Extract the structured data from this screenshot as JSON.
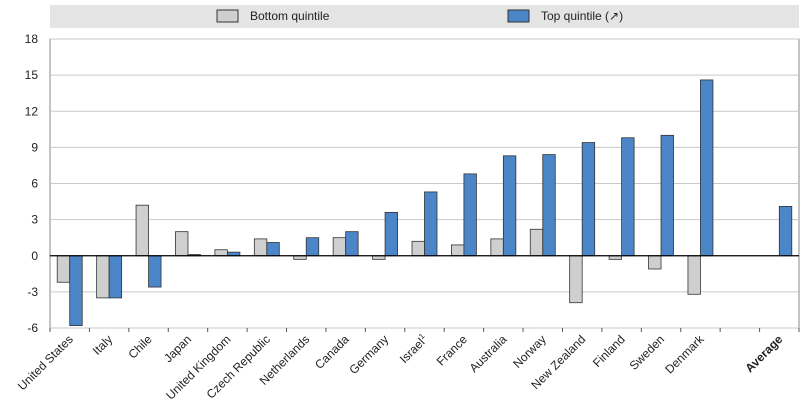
{
  "chart_data": {
    "type": "bar",
    "title": "",
    "xlabel": "",
    "ylabel": "",
    "ylim": [
      -6,
      18
    ],
    "yticks": [
      -6,
      -3,
      0,
      3,
      6,
      9,
      12,
      15,
      18
    ],
    "grid": true,
    "legend_position": "top",
    "categories": [
      "United States",
      "Italy",
      "Chile",
      "Japan",
      "United Kingdom",
      "Czech Republic",
      "Netherlands",
      "Canada",
      "Germany",
      "Israel",
      "France",
      "Australia",
      "Norway",
      "New Zealand",
      "Finland",
      "Sweden",
      "Denmark",
      "",
      "Average"
    ],
    "israel_footnote": "1",
    "bold_categories": [
      "Average"
    ],
    "series": [
      {
        "name": "Bottom quintile",
        "color": "#cfcfcf",
        "values": [
          -2.2,
          -3.5,
          4.2,
          2.0,
          0.5,
          1.4,
          -0.3,
          1.5,
          -0.3,
          1.2,
          0.9,
          1.4,
          2.2,
          -3.9,
          -0.3,
          -1.1,
          -3.2,
          null,
          null
        ]
      },
      {
        "name": "Top quintile (↗)",
        "color": "#4a86c8",
        "values": [
          -5.8,
          -3.5,
          -2.6,
          0.1,
          0.3,
          1.1,
          1.5,
          2.0,
          3.6,
          5.3,
          6.8,
          8.3,
          8.4,
          9.4,
          9.8,
          10.0,
          14.6,
          null,
          4.1
        ]
      }
    ]
  }
}
